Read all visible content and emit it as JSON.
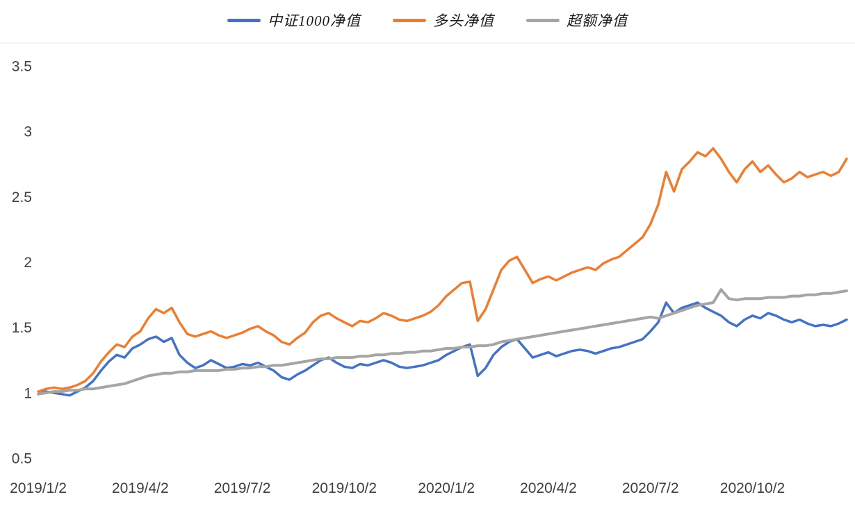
{
  "chart_data": {
    "type": "line",
    "title": "",
    "xlabel": "",
    "ylabel": "",
    "ylim": [
      0.5,
      3.5
    ],
    "yticks": [
      0.5,
      1,
      1.5,
      2,
      2.5,
      3,
      3.5
    ],
    "ytick_labels": [
      "0.5",
      "1",
      "1.5",
      "2",
      "2.5",
      "3",
      "3.5"
    ],
    "grid": false,
    "legend_position": "top-center",
    "x_ticks": [
      {
        "label": "2019/1/2",
        "week": 0
      },
      {
        "label": "2019/4/2",
        "week": 13
      },
      {
        "label": "2019/7/2",
        "week": 26
      },
      {
        "label": "2019/10/2",
        "week": 39
      },
      {
        "label": "2020/1/2",
        "week": 52
      },
      {
        "label": "2020/4/2",
        "week": 65
      },
      {
        "label": "2020/7/2",
        "week": 78
      },
      {
        "label": "2020/10/2",
        "week": 91
      }
    ],
    "x_unit": "weeks since 2019/1/2",
    "series": [
      {
        "name": "中证1000净值",
        "color": "#4472C4",
        "stroke_width": 3.5,
        "values": [
          1.0,
          1.02,
          1.01,
          1.0,
          0.99,
          1.02,
          1.05,
          1.1,
          1.18,
          1.25,
          1.3,
          1.28,
          1.35,
          1.38,
          1.42,
          1.44,
          1.4,
          1.43,
          1.3,
          1.24,
          1.2,
          1.22,
          1.26,
          1.23,
          1.2,
          1.21,
          1.23,
          1.22,
          1.24,
          1.21,
          1.18,
          1.13,
          1.11,
          1.15,
          1.18,
          1.22,
          1.26,
          1.28,
          1.24,
          1.21,
          1.2,
          1.23,
          1.22,
          1.24,
          1.26,
          1.24,
          1.21,
          1.2,
          1.21,
          1.22,
          1.24,
          1.26,
          1.3,
          1.33,
          1.36,
          1.38,
          1.14,
          1.2,
          1.3,
          1.36,
          1.4,
          1.42,
          1.35,
          1.28,
          1.3,
          1.32,
          1.29,
          1.31,
          1.33,
          1.34,
          1.33,
          1.31,
          1.33,
          1.35,
          1.36,
          1.38,
          1.4,
          1.42,
          1.48,
          1.55,
          1.7,
          1.62,
          1.66,
          1.68,
          1.7,
          1.66,
          1.63,
          1.6,
          1.55,
          1.52,
          1.57,
          1.6,
          1.58,
          1.62,
          1.6,
          1.57,
          1.55,
          1.57,
          1.54,
          1.52,
          1.53,
          1.52,
          1.54,
          1.57
        ]
      },
      {
        "name": "多头净值",
        "color": "#ED7D31",
        "stroke_width": 3.5,
        "values": [
          1.02,
          1.04,
          1.05,
          1.04,
          1.05,
          1.07,
          1.1,
          1.16,
          1.25,
          1.32,
          1.38,
          1.36,
          1.44,
          1.48,
          1.58,
          1.65,
          1.62,
          1.66,
          1.55,
          1.46,
          1.44,
          1.46,
          1.48,
          1.45,
          1.43,
          1.45,
          1.47,
          1.5,
          1.52,
          1.48,
          1.45,
          1.4,
          1.38,
          1.43,
          1.47,
          1.55,
          1.6,
          1.62,
          1.58,
          1.55,
          1.52,
          1.56,
          1.55,
          1.58,
          1.62,
          1.6,
          1.57,
          1.56,
          1.58,
          1.6,
          1.63,
          1.68,
          1.75,
          1.8,
          1.85,
          1.86,
          1.56,
          1.65,
          1.8,
          1.95,
          2.02,
          2.05,
          1.95,
          1.85,
          1.88,
          1.9,
          1.87,
          1.9,
          1.93,
          1.95,
          1.97,
          1.95,
          2.0,
          2.03,
          2.05,
          2.1,
          2.15,
          2.2,
          2.3,
          2.45,
          2.7,
          2.55,
          2.72,
          2.78,
          2.85,
          2.82,
          2.88,
          2.8,
          2.7,
          2.62,
          2.72,
          2.78,
          2.7,
          2.75,
          2.68,
          2.62,
          2.65,
          2.7,
          2.66,
          2.68,
          2.7,
          2.67,
          2.7,
          2.8
        ]
      },
      {
        "name": "超额净值",
        "color": "#A5A5A5",
        "stroke_width": 4,
        "values": [
          1.0,
          1.01,
          1.02,
          1.02,
          1.03,
          1.03,
          1.04,
          1.04,
          1.05,
          1.06,
          1.07,
          1.08,
          1.1,
          1.12,
          1.14,
          1.15,
          1.16,
          1.16,
          1.17,
          1.17,
          1.18,
          1.18,
          1.18,
          1.18,
          1.19,
          1.19,
          1.2,
          1.2,
          1.21,
          1.21,
          1.22,
          1.22,
          1.23,
          1.24,
          1.25,
          1.26,
          1.27,
          1.27,
          1.28,
          1.28,
          1.28,
          1.29,
          1.29,
          1.3,
          1.3,
          1.31,
          1.31,
          1.32,
          1.32,
          1.33,
          1.33,
          1.34,
          1.35,
          1.35,
          1.36,
          1.36,
          1.37,
          1.37,
          1.38,
          1.4,
          1.41,
          1.42,
          1.43,
          1.44,
          1.45,
          1.46,
          1.47,
          1.48,
          1.49,
          1.5,
          1.51,
          1.52,
          1.53,
          1.54,
          1.55,
          1.56,
          1.57,
          1.58,
          1.59,
          1.58,
          1.6,
          1.62,
          1.64,
          1.66,
          1.68,
          1.69,
          1.7,
          1.8,
          1.73,
          1.72,
          1.73,
          1.73,
          1.73,
          1.74,
          1.74,
          1.74,
          1.75,
          1.75,
          1.76,
          1.76,
          1.77,
          1.77,
          1.78,
          1.79
        ]
      }
    ]
  },
  "colors": {
    "axis_text": "#3f3f3f",
    "top_border": "#e8e8e8",
    "background": "#ffffff"
  }
}
